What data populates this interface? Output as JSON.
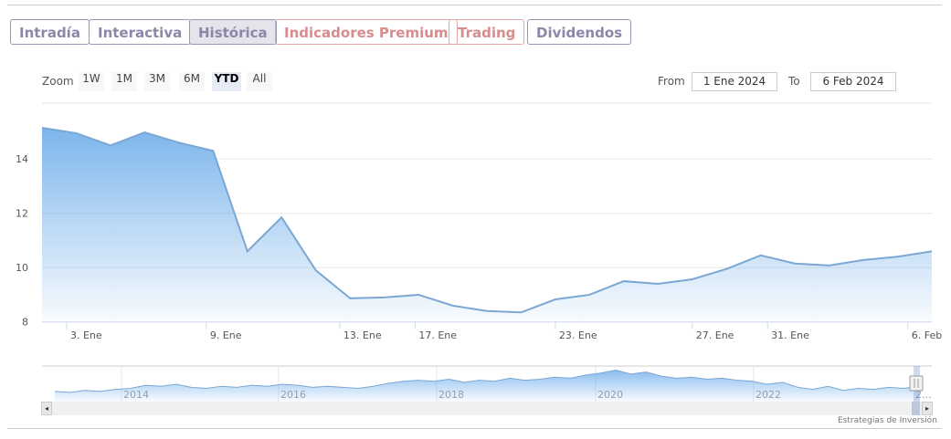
{
  "tabs": [
    {
      "label": "Intradía",
      "style": "normal"
    },
    {
      "label": "Interactiva",
      "style": "normal"
    },
    {
      "label": "Histórica",
      "style": "active"
    },
    {
      "label": "Indicadores Premium",
      "style": "red"
    },
    {
      "label": "Trading",
      "style": "red"
    },
    {
      "label": "Dividendos",
      "style": "normal"
    }
  ],
  "range_selector": {
    "zoom_label": "Zoom",
    "buttons": [
      "1W",
      "1M",
      "3M",
      "6M",
      "YTD",
      "All"
    ],
    "selected": "YTD",
    "from_label": "From",
    "from_value": "1 Ene 2024",
    "to_label": "To",
    "to_value": "6 Feb 2024"
  },
  "chart_data": {
    "type": "area",
    "values": [
      15.15,
      14.95,
      14.5,
      14.98,
      14.6,
      14.3,
      10.6,
      11.85,
      9.9,
      8.87,
      8.9,
      9.0,
      8.6,
      8.4,
      8.35,
      8.83,
      9.0,
      9.5,
      9.4,
      9.57,
      9.95,
      10.45,
      10.15,
      10.08,
      10.28,
      10.4,
      10.6
    ],
    "ylim": [
      8,
      16
    ],
    "yticks": [
      {
        "v": 8,
        "label": "8"
      },
      {
        "v": 10,
        "label": "10"
      },
      {
        "v": 12,
        "label": "12"
      },
      {
        "v": 14,
        "label": "14"
      }
    ],
    "xticks": [
      {
        "i": 0.72,
        "label": "3. Ene"
      },
      {
        "i": 4.8,
        "label": "9. Ene"
      },
      {
        "i": 8.7,
        "label": "13. Ene"
      },
      {
        "i": 10.9,
        "label": "17. Ene"
      },
      {
        "i": 15.0,
        "label": "23. Ene"
      },
      {
        "i": 19.0,
        "label": "27. Ene"
      },
      {
        "i": 21.2,
        "label": "31. Ene"
      },
      {
        "i": 25.3,
        "label": "6. Feb"
      }
    ],
    "color": "#7cb5ec",
    "line_color": "#7ba7d4",
    "grid": true,
    "navigator": {
      "values": [
        20,
        19,
        21,
        20,
        22,
        23,
        26,
        25,
        27,
        24,
        23,
        25,
        24,
        26,
        25,
        27,
        26,
        24,
        25,
        24,
        23,
        25,
        28,
        30,
        31,
        30,
        32,
        29,
        31,
        30,
        33,
        31,
        32,
        34,
        33,
        36,
        38,
        41,
        37,
        39,
        35,
        33,
        34,
        32,
        33,
        31,
        30,
        27,
        29,
        24,
        22,
        25,
        21,
        23,
        22,
        24,
        23,
        25
      ],
      "years": [
        "2014",
        "2016",
        "2018",
        "2020",
        "2022",
        "2..."
      ]
    }
  },
  "credit": "Estrategias de Inversión"
}
